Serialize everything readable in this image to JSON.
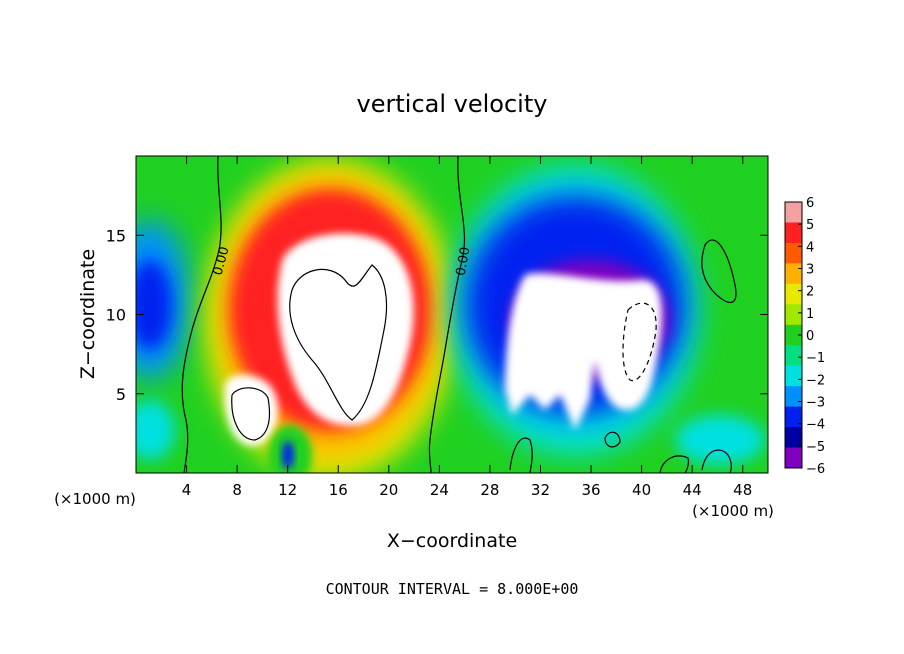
{
  "chart_data": {
    "type": "heatmap",
    "title": "vertical velocity",
    "xlabel": "X−coordinate",
    "ylabel": "Z−coordinate",
    "x_unit": "(×1000 m)",
    "x_unit_right": "(×1000 m)",
    "xlim": [
      0,
      50
    ],
    "ylim": [
      0,
      20
    ],
    "x_ticks": [
      4,
      8,
      12,
      16,
      20,
      24,
      28,
      32,
      36,
      40,
      44,
      48
    ],
    "y_ticks": [
      5,
      10,
      15
    ],
    "colorbar": {
      "ticks": [
        6,
        5,
        4,
        3,
        2,
        1,
        0,
        -1,
        -2,
        -3,
        -4,
        -5,
        -6
      ],
      "tick_labels": [
        "6",
        "5",
        "4",
        "3",
        "2",
        "1",
        "0",
        "−1",
        "−2",
        "−3",
        "−4",
        "−5",
        "−6"
      ],
      "range": [
        -6,
        6
      ],
      "colors": [
        "#f4a0a0",
        "#ff2020",
        "#ff5a00",
        "#ffb000",
        "#e8e800",
        "#a0e800",
        "#20d020",
        "#00e080",
        "#00e0e0",
        "#0090ff",
        "#0020f0",
        "#0000a0",
        "#8000c0"
      ]
    },
    "contour_labels": [
      {
        "text": "0.00",
        "x": 6.4,
        "z": 13.8
      },
      {
        "text": "0.00",
        "x": 25.9,
        "z": 13.8
      }
    ],
    "features": [
      {
        "kind": "updraft-core",
        "x": 17,
        "z": 10,
        "sign": "positive"
      },
      {
        "kind": "downdraft-core",
        "x": 36,
        "z": 8,
        "sign": "negative"
      }
    ],
    "footer": "CONTOUR INTERVAL =  8.000E+00"
  }
}
